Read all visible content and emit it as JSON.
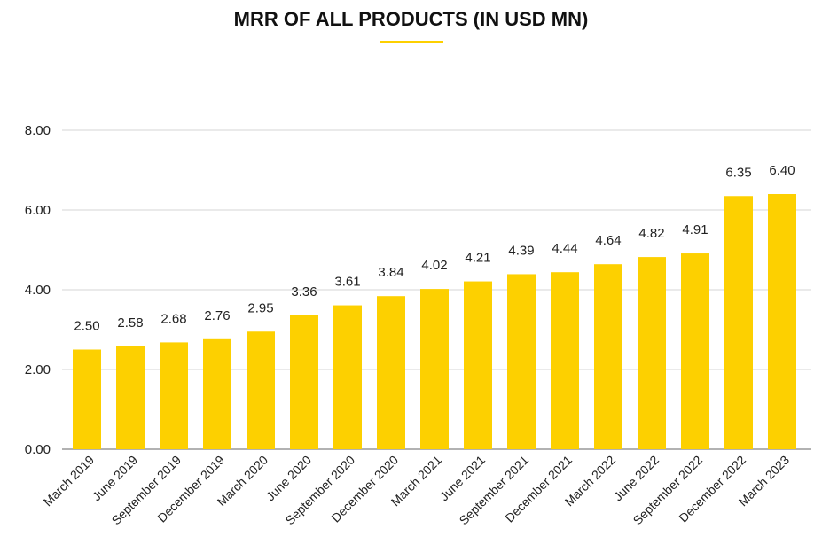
{
  "title": "MRR OF ALL PRODUCTS (IN USD MN)",
  "colors": {
    "bar": "#FDD000",
    "accent_underline": "#FDD000",
    "grid": "#d6d6d6",
    "text": "#222222"
  },
  "chart_data": {
    "type": "bar",
    "title": "MRR OF ALL PRODUCTS (IN USD MN)",
    "xlabel": "",
    "ylabel": "",
    "ylim": [
      0,
      8
    ],
    "yticks": [
      "0.00",
      "2.00",
      "4.00",
      "6.00",
      "8.00"
    ],
    "ytick_values": [
      0,
      2,
      4,
      6,
      8
    ],
    "grid": true,
    "legend": "none",
    "categories": [
      "March 2019",
      "June 2019",
      "September 2019",
      "December 2019",
      "March 2020",
      "June 2020",
      "September 2020",
      "December 2020",
      "March 2021",
      "June 2021",
      "September 2021",
      "December 2021",
      "March 2022",
      "June 2022",
      "September 2022",
      "December 2022",
      "March 2023"
    ],
    "values": [
      2.5,
      2.58,
      2.68,
      2.76,
      2.95,
      3.36,
      3.61,
      3.84,
      4.02,
      4.21,
      4.39,
      4.44,
      4.64,
      4.82,
      4.91,
      6.35,
      6.4
    ],
    "data_labels": [
      "2.50",
      "2.58",
      "2.68",
      "2.76",
      "2.95",
      "3.36",
      "3.61",
      "3.84",
      "4.02",
      "4.21",
      "4.39",
      "4.44",
      "4.64",
      "4.82",
      "4.91",
      "6.35",
      "6.40"
    ]
  }
}
